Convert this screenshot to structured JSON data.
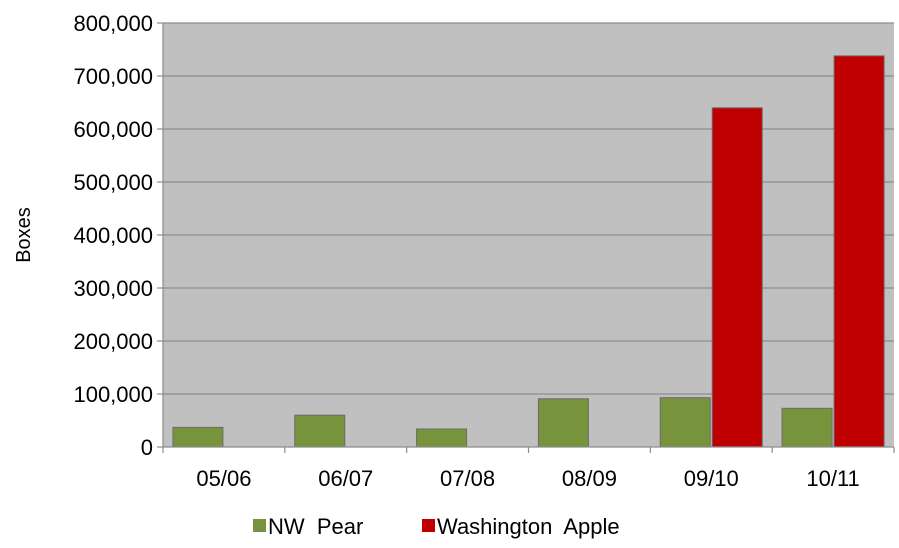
{
  "chart_data": {
    "type": "bar",
    "categories": [
      "05/06",
      "06/07",
      "07/08",
      "08/09",
      "09/10",
      "10/11"
    ],
    "series": [
      {
        "name": "NW  Pear",
        "values": [
          37000,
          60000,
          34000,
          91000,
          93000,
          73000
        ],
        "color": "#77933c"
      },
      {
        "name": "Washington  Apple",
        "values": [
          null,
          null,
          null,
          null,
          640000,
          738000
        ],
        "color": "#c00000"
      }
    ],
    "ylabel": "Boxes",
    "xlabel": "",
    "title": "",
    "ylim": [
      0,
      800000
    ],
    "yticks": [
      0,
      100000,
      200000,
      300000,
      400000,
      500000,
      600000,
      700000,
      800000
    ],
    "ytick_labels": [
      "0",
      "100,000",
      "200,000",
      "300,000",
      "400,000",
      "500,000",
      "600,000",
      "700,000",
      "800,000"
    ],
    "grid": true,
    "plot_background": "#c0c0c0",
    "legend_position": "bottom"
  }
}
